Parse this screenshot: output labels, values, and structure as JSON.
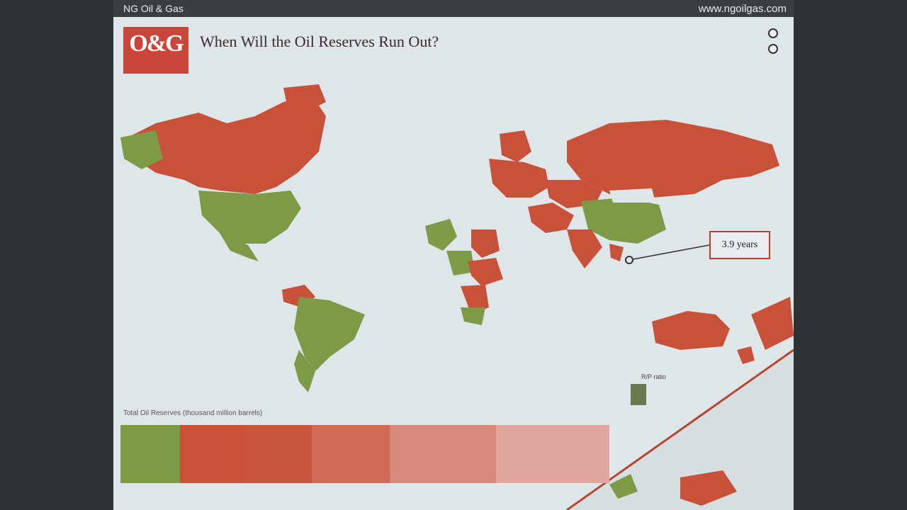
{
  "window": {
    "left_title": "NG Oil & Gas",
    "url": "www.ngoilgas.com"
  },
  "header": {
    "logo_text": "O&G",
    "logo_sub": "",
    "title": "When Will the Oil Reserves Run Out?",
    "subtitle": ""
  },
  "legend": {
    "options": [
      "",
      ""
    ]
  },
  "callout": {
    "label": "3.9 years"
  },
  "stacked_bar": {
    "title": "Total Oil Reserves (thousand million barrels)",
    "segments": [
      {
        "label": "",
        "color": "#7d9a47"
      },
      {
        "label": "",
        "color": "#c8513a"
      },
      {
        "label": "",
        "color": "#c9553e"
      },
      {
        "label": "",
        "color": "#cf6a55"
      },
      {
        "label": "",
        "color": "#d78a7c"
      },
      {
        "label": "",
        "color": "#dfa79e"
      }
    ]
  },
  "rp_label": "R/P ratio",
  "colors": {
    "accent": "#c8473a",
    "high_reserves": "#c8513a",
    "low_reserves": "#7d9a47",
    "no_data": "#e2e7ea"
  }
}
